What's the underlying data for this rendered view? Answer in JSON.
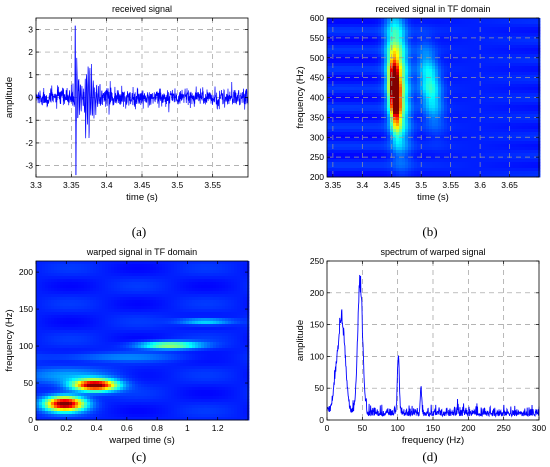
{
  "colors": {
    "signal": "#0000ff",
    "tf_background": "#0000a8"
  },
  "chart_data": [
    {
      "id": "a",
      "type": "line",
      "title": "received signal",
      "xlabel": "time (s)",
      "ylabel": "amplitude",
      "xlim": [
        3.3,
        3.6
      ],
      "ylim": [
        -3.5,
        3.5
      ],
      "xticks": [
        "3.3",
        "3.35",
        "3.4",
        "3.45",
        "3.5",
        "3.55"
      ],
      "yticks": [
        "-3",
        "-2",
        "-1",
        "0",
        "1",
        "2",
        "3"
      ],
      "grid": true,
      "caption": "(a)",
      "events": [
        {
          "t": 3.356,
          "amp": 3.1,
          "decay": 0.004
        },
        {
          "t": 3.37,
          "amp": 2.2,
          "decay": 0.006
        },
        {
          "t": 3.375,
          "amp": 1.3,
          "decay": 0.01
        }
      ],
      "noise_level": 0.2,
      "peak_max": 3.15,
      "peak_min": -3.4
    },
    {
      "id": "b",
      "type": "heatmap",
      "title": "received signal in TF domain",
      "xlabel": "time (s)",
      "ylabel": "frequency (Hz)",
      "xlim": [
        3.34,
        3.7
      ],
      "ylim": [
        200,
        600
      ],
      "xticks": [
        "3.35",
        "3.4",
        "3.45",
        "3.5",
        "3.55",
        "3.6",
        "3.65"
      ],
      "yticks": [
        "200",
        "250",
        "300",
        "350",
        "400",
        "450",
        "500",
        "550",
        "600"
      ],
      "grid": true,
      "caption": "(b)",
      "blobs": [
        {
          "x": 3.455,
          "y": 410,
          "sx": 0.006,
          "sy": 55,
          "v": 1.0,
          "tilt": -3e-05
        },
        {
          "x": 3.46,
          "y": 450,
          "sx": 0.012,
          "sy": 110,
          "v": 0.5,
          "tilt": -3e-05
        },
        {
          "x": 3.515,
          "y": 430,
          "sx": 0.012,
          "sy": 60,
          "v": 0.3,
          "tilt": -8e-05
        }
      ]
    },
    {
      "id": "c",
      "type": "heatmap",
      "title": "warped signal in TF domain",
      "xlabel": "warped time (s)",
      "ylabel": "frequency (Hz)",
      "xlim": [
        0,
        1.4
      ],
      "ylim": [
        0,
        215
      ],
      "xticks": [
        "0",
        "0.2",
        "0.4",
        "0.6",
        "0.8",
        "1",
        "1.2"
      ],
      "yticks": [
        "0",
        "50",
        "100",
        "150",
        "200"
      ],
      "grid": false,
      "caption": "(c)",
      "blobs": [
        {
          "x": 0.19,
          "y": 22,
          "sx": 0.09,
          "sy": 7,
          "v": 1.0
        },
        {
          "x": 0.39,
          "y": 47,
          "sx": 0.1,
          "sy": 5.5,
          "v": 1.0
        },
        {
          "x": 0.88,
          "y": 101,
          "sx": 0.14,
          "sy": 3.5,
          "v": 0.45
        },
        {
          "x": 1.12,
          "y": 133,
          "sx": 0.12,
          "sy": 3,
          "v": 0.25
        },
        {
          "x": 0.2,
          "y": 60,
          "sx": 0.25,
          "sy": 8,
          "v": 0.12
        },
        {
          "x": 0.5,
          "y": 85,
          "sx": 0.35,
          "sy": 4,
          "v": 0.1
        }
      ]
    },
    {
      "id": "d",
      "type": "line",
      "title": "spectrum of warped signal",
      "xlabel": "frequency (Hz)",
      "ylabel": "amplitude",
      "xlim": [
        0,
        300
      ],
      "ylim": [
        0,
        250
      ],
      "xticks": [
        "0",
        "50",
        "100",
        "150",
        "200",
        "250",
        "300"
      ],
      "yticks": [
        "0",
        "50",
        "100",
        "150",
        "200",
        "250"
      ],
      "grid": true,
      "caption": "(d)",
      "peaks": [
        {
          "f": 21,
          "a": 158,
          "w": 5
        },
        {
          "f": 47,
          "a": 222,
          "w": 3.5
        },
        {
          "f": 101,
          "a": 95,
          "w": 1.4
        },
        {
          "f": 133,
          "a": 48,
          "w": 1
        },
        {
          "f": 12,
          "a": 40,
          "w": 4
        }
      ],
      "noise_level": 10
    }
  ]
}
